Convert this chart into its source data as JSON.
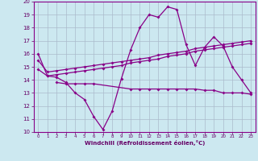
{
  "title": "",
  "xlabel": "Windchill (Refroidissement éolien,°C)",
  "background_color": "#cce8f0",
  "grid_color": "#aabbcc",
  "line_color": "#880088",
  "xlim": [
    -0.5,
    23.5
  ],
  "ylim": [
    10,
    20
  ],
  "yticks": [
    10,
    11,
    12,
    13,
    14,
    15,
    16,
    17,
    18,
    19,
    20
  ],
  "xticks": [
    0,
    1,
    2,
    3,
    4,
    5,
    6,
    7,
    8,
    9,
    10,
    11,
    12,
    13,
    14,
    15,
    16,
    17,
    18,
    19,
    20,
    21,
    22,
    23
  ],
  "series": [
    {
      "x": [
        0,
        1,
        2,
        3,
        4,
        5,
        6,
        7,
        8,
        9,
        10,
        11,
        12,
        13,
        14,
        15,
        16,
        17,
        18,
        19,
        20,
        21,
        22,
        23
      ],
      "y": [
        16.0,
        14.3,
        14.2,
        13.8,
        13.0,
        12.5,
        11.2,
        10.2,
        11.6,
        14.1,
        16.3,
        18.0,
        19.0,
        18.8,
        19.6,
        19.4,
        16.7,
        15.1,
        16.5,
        17.3,
        16.6,
        15.0,
        14.0,
        13.0
      ]
    },
    {
      "x": [
        0,
        1,
        2,
        3,
        4,
        5,
        6,
        7,
        8,
        9,
        10,
        11,
        12,
        13,
        14,
        15,
        16,
        17,
        18,
        19,
        20,
        21,
        22,
        23
      ],
      "y": [
        14.8,
        14.3,
        14.4,
        14.5,
        14.6,
        14.7,
        14.8,
        14.9,
        15.0,
        15.1,
        15.3,
        15.4,
        15.5,
        15.6,
        15.8,
        15.9,
        16.0,
        16.2,
        16.3,
        16.4,
        16.5,
        16.6,
        16.7,
        16.8
      ]
    },
    {
      "x": [
        0,
        1,
        2,
        3,
        4,
        5,
        6,
        7,
        8,
        9,
        10,
        11,
        12,
        13,
        14,
        15,
        16,
        17,
        18,
        19,
        20,
        21,
        22,
        23
      ],
      "y": [
        15.5,
        14.6,
        14.7,
        14.8,
        14.9,
        15.0,
        15.1,
        15.2,
        15.3,
        15.4,
        15.5,
        15.6,
        15.7,
        15.9,
        16.0,
        16.1,
        16.2,
        16.4,
        16.5,
        16.6,
        16.7,
        16.8,
        16.9,
        17.0
      ]
    },
    {
      "x": [
        2,
        3,
        4,
        5,
        6,
        10,
        11,
        12,
        13,
        14,
        15,
        16,
        17,
        18,
        19,
        20,
        21,
        22,
        23
      ],
      "y": [
        13.8,
        13.7,
        13.7,
        13.7,
        13.7,
        13.3,
        13.3,
        13.3,
        13.3,
        13.3,
        13.3,
        13.3,
        13.3,
        13.2,
        13.2,
        13.0,
        13.0,
        13.0,
        12.9
      ]
    }
  ]
}
